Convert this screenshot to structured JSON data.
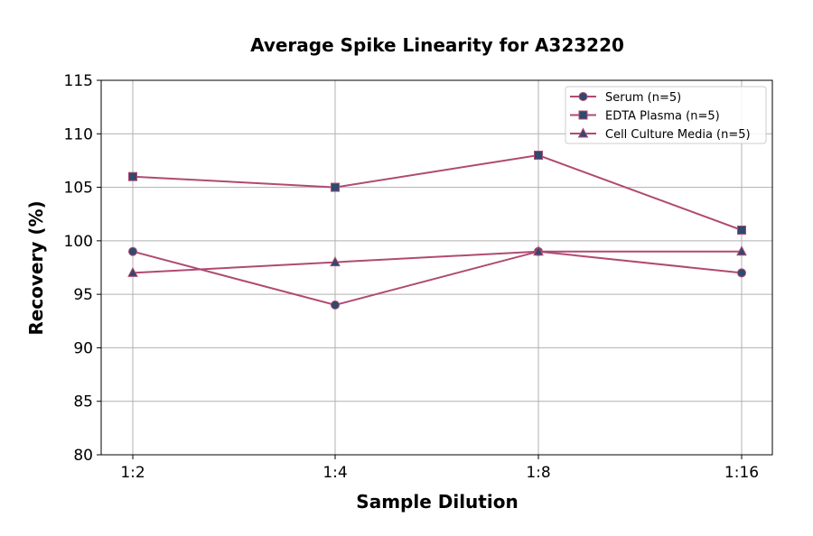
{
  "chart_data": {
    "type": "line",
    "title": "Average Spike Linearity for A323220",
    "xlabel": "Sample Dilution",
    "ylabel": "Recovery (%)",
    "categories": [
      "1:2",
      "1:4",
      "1:8",
      "1:16"
    ],
    "ylim": [
      80,
      115
    ],
    "yticks": [
      80,
      85,
      90,
      95,
      100,
      105,
      110,
      115
    ],
    "grid": true,
    "legend_position": "top-right",
    "line_color": "#b04a72",
    "marker_color": "#2e4a6e",
    "series": [
      {
        "name": "Serum (n=5)",
        "marker": "circle",
        "values": [
          99,
          94,
          99,
          97
        ]
      },
      {
        "name": "EDTA Plasma (n=5)",
        "marker": "square",
        "values": [
          106,
          105,
          108,
          101
        ]
      },
      {
        "name": "Cell Culture Media (n=5)",
        "marker": "triangle",
        "values": [
          97,
          98,
          99,
          99
        ]
      }
    ]
  }
}
